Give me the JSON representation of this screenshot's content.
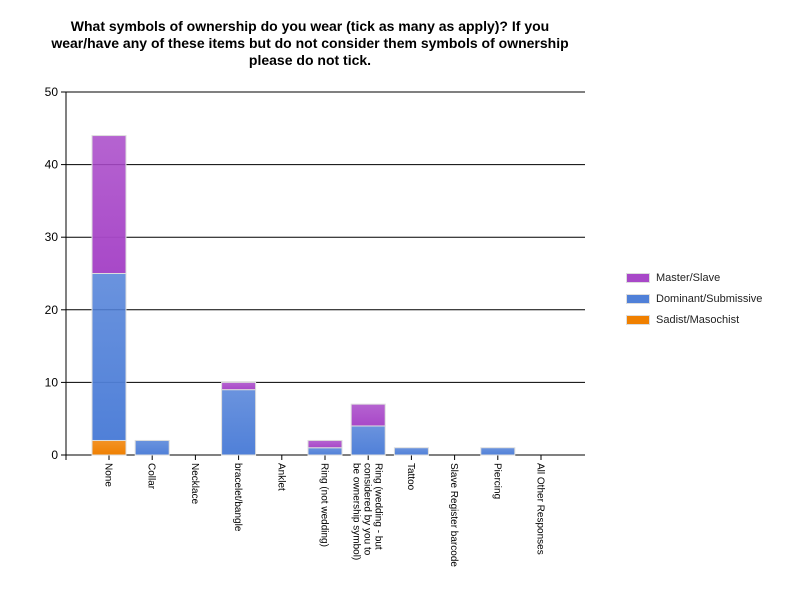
{
  "chart_data": {
    "type": "bar",
    "stacked": true,
    "title": "What symbols of ownership do you wear (tick as many as apply)? If you wear/have any of these items but do not consider them symbols of ownership please do not tick.",
    "xlabel": "",
    "ylabel": "",
    "ylim": [
      0,
      50
    ],
    "yticks": [
      0,
      10,
      20,
      30,
      40,
      50
    ],
    "grid": true,
    "legend_position": "right",
    "categories": [
      "None",
      "Collar",
      "Necklace",
      "bracelet/bangle",
      "Anklet",
      "Ring (not wedding)",
      "Ring (wedding - but considered by you to be ownership symbol)",
      "Tattoo",
      "Slave Register barcode",
      "Piercing",
      "All Other Responses"
    ],
    "series": [
      {
        "name": "Sadist/Masochist",
        "color": "#f08000",
        "values": [
          2,
          0,
          0,
          0,
          0,
          0,
          0,
          0,
          0,
          0,
          0
        ]
      },
      {
        "name": "Dominant/Submissive",
        "color": "#5080d8",
        "values": [
          23,
          2,
          0,
          9,
          0,
          1,
          4,
          1,
          0,
          1,
          0
        ]
      },
      {
        "name": "Master/Slave",
        "color": "#a848c8",
        "values": [
          19,
          0,
          0,
          1,
          0,
          1,
          3,
          0,
          0,
          0,
          0
        ]
      }
    ],
    "legend": [
      "Master/Slave",
      "Dominant/Submissive",
      "Sadist/Masochist"
    ]
  }
}
